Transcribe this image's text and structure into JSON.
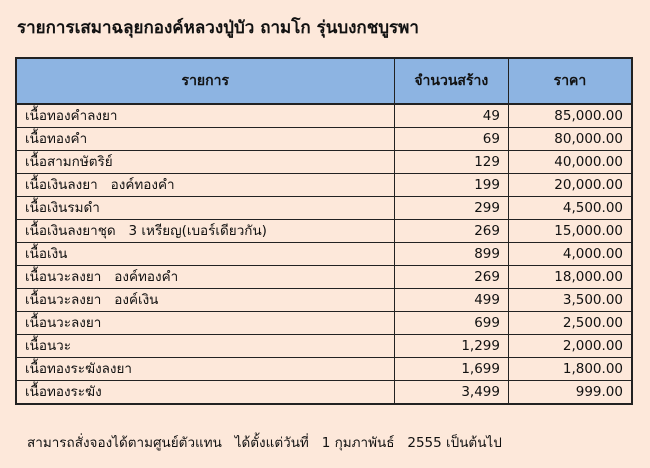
{
  "title": "รายการเสมาฉลุยกองค์หลวงปู่บัว ถามโก รุ่นบงกชบูรพา",
  "table": {
    "headers": [
      "รายการ",
      "จำนวนสร้าง",
      "ราคา"
    ],
    "rows": [
      [
        "เนื้อทองคำลงยา",
        "49",
        "85,000.00"
      ],
      [
        "เนื้อทองคำ",
        "69",
        "80,000.00"
      ],
      [
        "เนื้อสามกษัตริย์",
        "129",
        "40,000.00"
      ],
      [
        "เนื้อเงินลงยา   องค์ทองคำ",
        "199",
        "20,000.00"
      ],
      [
        "เนื้อเงินรมดำ",
        "299",
        "4,500.00"
      ],
      [
        "เนื้อเงินลงยาชุด   3 เหรียญ(เบอร์เดียวกัน)",
        "269",
        "15,000.00"
      ],
      [
        "เนื้อเงิน",
        "899",
        "4,000.00"
      ],
      [
        "เนื้อนวะลงยา   องค์ทองคำ",
        "269",
        "18,000.00"
      ],
      [
        "เนื้อนวะลงยา   องค์เงิน",
        "499",
        "3,500.00"
      ],
      [
        "เนื้อนวะลงยา",
        "699",
        "2,500.00"
      ],
      [
        "เนื้อนวะ",
        "1,299",
        "2,000.00"
      ],
      [
        "เนื้อทองระฆังลงยา",
        "1,699",
        "1,800.00"
      ],
      [
        "เนื้อทองระฆัง",
        "3,499",
        "999.00"
      ]
    ]
  },
  "footer": "สามารถสั่งจองได้ตามศูนย์ตัวแทน   ได้ตั้งแต่วันที่   1 กุมภาพันธ์   2555 เป็นต้นไป",
  "colors": {
    "background": "#fde8da",
    "header": "#8db4e2"
  }
}
